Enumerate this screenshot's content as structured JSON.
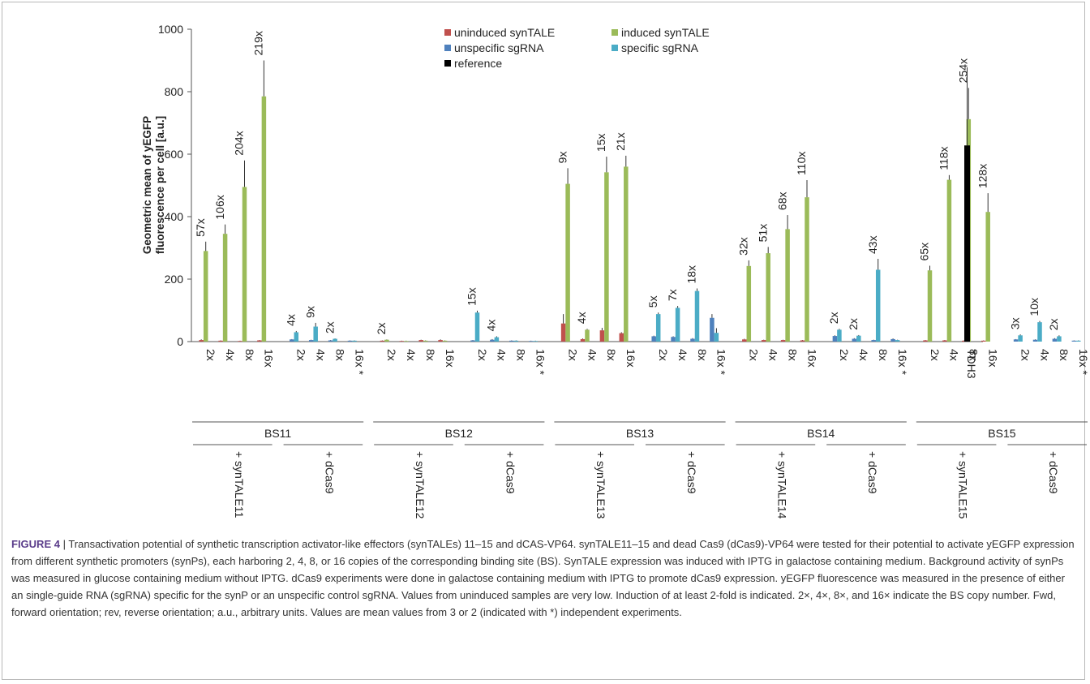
{
  "colors": {
    "uninduced": "#c0504d",
    "induced": "#9bbb59",
    "unspecific": "#4f81bd",
    "specific": "#4bacc6",
    "reference": "#000000"
  },
  "chart_data": {
    "type": "bar",
    "ylabel": "Geometric mean of yEGFP fluorescence per cell [a.u.]",
    "ylim": [
      0,
      1000
    ],
    "yticks": [
      0,
      200,
      400,
      600,
      800,
      1000
    ],
    "legend": {
      "placement": "top-center",
      "entries": [
        {
          "key": "uninduced",
          "label": "uninduced synTALE"
        },
        {
          "key": "induced",
          "label": "induced synTALE"
        },
        {
          "key": "unspecific",
          "label": "unspecific sgRNA"
        },
        {
          "key": "specific",
          "label": "specific sgRNA"
        },
        {
          "key": "reference",
          "label": "reference"
        }
      ]
    },
    "blocks": [
      {
        "bs": "BS11",
        "groups": [
          {
            "label": "+ synTALE11",
            "type": "synTALE",
            "categories": [
              {
                "label": "2x",
                "values": [
                  5,
                  290
                ],
                "errors": [
                  2,
                  30
                ],
                "fold": "57x"
              },
              {
                "label": "4x",
                "values": [
                  3,
                  345
                ],
                "errors": [
                  1,
                  30
                ],
                "fold": "106x"
              },
              {
                "label": "8x",
                "values": [
                  2,
                  495
                ],
                "errors": [
                  1,
                  85
                ],
                "fold": "204x"
              },
              {
                "label": "16x",
                "values": [
                  4,
                  785
                ],
                "errors": [
                  1,
                  115
                ],
                "fold": "219x"
              }
            ]
          },
          {
            "label": "+ dCas9",
            "type": "dCas9",
            "categories": [
              {
                "label": "2x",
                "values": [
                  7,
                  30
                ],
                "errors": [
                  1,
                  4
                ],
                "fold": "4x"
              },
              {
                "label": "4x",
                "values": [
                  5,
                  48
                ],
                "errors": [
                  1,
                  12
                ],
                "fold": "9x"
              },
              {
                "label": "8x",
                "values": [
                  4,
                  9
                ],
                "errors": [
                  1,
                  1
                ],
                "fold": "2x"
              },
              {
                "label": "16x *",
                "values": [
                  3,
                  3
                ],
                "errors": [
                  1,
                  1
                ],
                "fold": ""
              }
            ]
          }
        ]
      },
      {
        "bs": "BS12",
        "groups": [
          {
            "label": "+ synTALE12",
            "type": "synTALE",
            "categories": [
              {
                "label": "2x",
                "values": [
                  3,
                  6
                ],
                "errors": [
                  1,
                  1
                ],
                "fold": "2x"
              },
              {
                "label": "4x",
                "values": [
                  2,
                  2
                ],
                "errors": [
                  1,
                  1
                ],
                "fold": ""
              },
              {
                "label": "8x",
                "values": [
                  5,
                  3
                ],
                "errors": [
                  1,
                  1
                ],
                "fold": ""
              },
              {
                "label": "16x",
                "values": [
                  5,
                  3
                ],
                "errors": [
                  2,
                  1
                ],
                "fold": ""
              }
            ]
          },
          {
            "label": "+ dCas9",
            "type": "dCas9",
            "categories": [
              {
                "label": "2x",
                "values": [
                  4,
                  93
                ],
                "errors": [
                  1,
                  6
                ],
                "fold": "15x"
              },
              {
                "label": "4x",
                "values": [
                  6,
                  14
                ],
                "errors": [
                  2,
                  3
                ],
                "fold": "4x"
              },
              {
                "label": "8x",
                "values": [
                  3,
                  3
                ],
                "errors": [
                  1,
                  1
                ],
                "fold": ""
              },
              {
                "label": "16x *",
                "values": [
                  2,
                  2
                ],
                "errors": [
                  1,
                  1
                ],
                "fold": ""
              }
            ]
          }
        ]
      },
      {
        "bs": "BS13",
        "groups": [
          {
            "label": "+ synTALE13",
            "type": "synTALE",
            "categories": [
              {
                "label": "2x",
                "values": [
                  58,
                  505
                ],
                "errors": [
                  30,
                  50
                ],
                "fold": "9x"
              },
              {
                "label": "4x",
                "values": [
                  8,
                  38
                ],
                "errors": [
                  2,
                  3
                ],
                "fold": "4x"
              },
              {
                "label": "8x",
                "values": [
                  36,
                  542
                ],
                "errors": [
                  8,
                  50
                ],
                "fold": "15x"
              },
              {
                "label": "16x",
                "values": [
                  27,
                  560
                ],
                "errors": [
                  3,
                  35
                ],
                "fold": "21x"
              }
            ]
          },
          {
            "label": "+ dCas9",
            "type": "dCas9",
            "categories": [
              {
                "label": "2x",
                "values": [
                  17,
                  88
                ],
                "errors": [
                  2,
                  5
                ],
                "fold": "5x"
              },
              {
                "label": "4x",
                "values": [
                  15,
                  108
                ],
                "errors": [
                  2,
                  6
                ],
                "fold": "7x"
              },
              {
                "label": "8x",
                "values": [
                  9,
                  162
                ],
                "errors": [
                  2,
                  8
                ],
                "fold": "18x"
              },
              {
                "label": "16x *",
                "values": [
                  76,
                  28
                ],
                "errors": [
                  12,
                  15
                ],
                "fold": ""
              }
            ]
          }
        ]
      },
      {
        "bs": "BS14",
        "groups": [
          {
            "label": "+ synTALE14",
            "type": "synTALE",
            "categories": [
              {
                "label": "2x",
                "values": [
                  7,
                  242
                ],
                "errors": [
                  2,
                  18
                ],
                "fold": "32x"
              },
              {
                "label": "4x",
                "values": [
                  5,
                  283
                ],
                "errors": [
                  1,
                  20
                ],
                "fold": "51x"
              },
              {
                "label": "8x",
                "values": [
                  5,
                  360
                ],
                "errors": [
                  1,
                  45
                ],
                "fold": "68x"
              },
              {
                "label": "16x",
                "values": [
                  4,
                  462
                ],
                "errors": [
                  1,
                  55
                ],
                "fold": "110x"
              }
            ]
          },
          {
            "label": "+ dCas9",
            "type": "dCas9",
            "categories": [
              {
                "label": "2x",
                "values": [
                  18,
                  38
                ],
                "errors": [
                  2,
                  3
                ],
                "fold": "2x"
              },
              {
                "label": "4x",
                "values": [
                  9,
                  19
                ],
                "errors": [
                  2,
                  2
                ],
                "fold": "2x"
              },
              {
                "label": "8x",
                "values": [
                  5,
                  230
                ],
                "errors": [
                  1,
                  35
                ],
                "fold": "43x"
              },
              {
                "label": "16x *",
                "values": [
                  8,
                  5
                ],
                "errors": [
                  2,
                  1
                ],
                "fold": ""
              }
            ]
          }
        ]
      },
      {
        "bs": "BS15",
        "groups": [
          {
            "label": "+ synTALE15",
            "type": "synTALE",
            "categories": [
              {
                "label": "2x",
                "values": [
                  4,
                  228
                ],
                "errors": [
                  1,
                  15
                ],
                "fold": "65x"
              },
              {
                "label": "4x",
                "values": [
                  4,
                  518
                ],
                "errors": [
                  1,
                  15
                ],
                "fold": "118x"
              },
              {
                "label": "8x",
                "values": [
                  3,
                  712
                ],
                "errors": [
                  1,
                  100
                ],
                "fold": "254x"
              },
              {
                "label": "16x",
                "values": [
                  3,
                  415
                ],
                "errors": [
                  1,
                  60
                ],
                "fold": "128x"
              }
            ]
          },
          {
            "label": "+ dCas9",
            "type": "dCas9",
            "categories": [
              {
                "label": "2x",
                "values": [
                  7,
                  20
                ],
                "errors": [
                  1,
                  3
                ],
                "fold": "3x"
              },
              {
                "label": "4x",
                "values": [
                  6,
                  62
                ],
                "errors": [
                  1,
                  4
                ],
                "fold": "10x"
              },
              {
                "label": "8x",
                "values": [
                  9,
                  17
                ],
                "errors": [
                  2,
                  3
                ],
                "fold": "2x"
              },
              {
                "label": "16x *",
                "values": [
                  3,
                  3
                ],
                "errors": [
                  1,
                  1
                ],
                "fold": ""
              }
            ]
          }
        ]
      }
    ],
    "reference": {
      "label": "TDH3",
      "value": 628,
      "error": 250
    }
  },
  "caption": {
    "figure_label": "FIGURE 4",
    "text": " | Transactivation potential of synthetic transcription activator-like effectors (synTALEs) 11–15 and dCAS-VP64. synTALE11–15 and dead Cas9 (dCas9)-VP64 were tested for their potential to activate yEGFP expression from different synthetic promoters (synPs), each harboring 2, 4, 8, or 16 copies of the corresponding binding site (BS). SynTALE expression was induced with IPTG in galactose containing medium. Background activity of synPs was measured in glucose containing medium without IPTG. dCas9 experiments were done in galactose containing medium with IPTG to promote dCas9 expression. yEGFP fluorescence was measured in the presence of either an single-guide RNA (sgRNA) specific for the synP or an unspecific control sgRNA. Values from uninduced samples are very low. Induction of at least 2-fold is indicated. 2×, 4×, 8×, and 16× indicate the BS copy number. Fwd, forward orientation; rev, reverse orientation; a.u., arbitrary units. Values are mean values from 3 or 2 (indicated with *) independent experiments."
  }
}
